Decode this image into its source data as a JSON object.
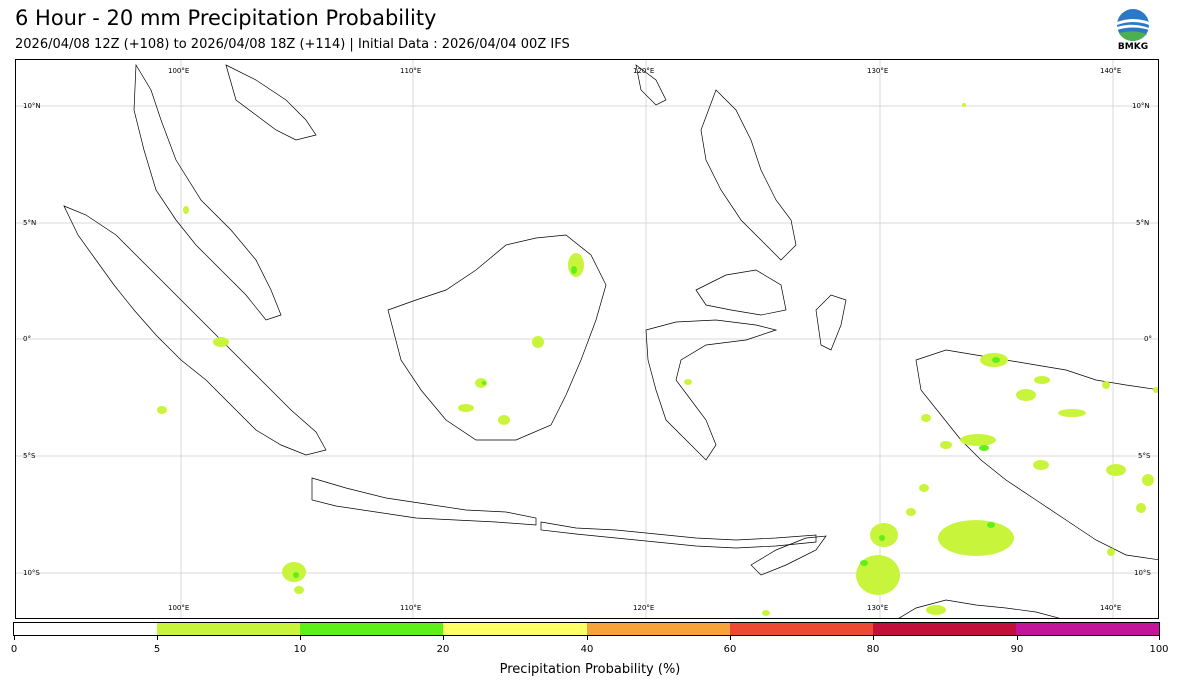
{
  "header": {
    "title": "6 Hour - 20 mm Precipitation Probability",
    "subtitle": "2026/04/08 12Z (+108) to 2026/04/08 18Z (+114) | Initial Data : 2026/04/04 00Z IFS",
    "logo_text": "BMKG"
  },
  "map": {
    "lon_labels": [
      "100°E",
      "110°E",
      "120°E",
      "130°E",
      "140°E"
    ],
    "lat_labels": [
      "10°N",
      "5°N",
      "0°",
      "5°S",
      "10°S"
    ],
    "colors": {
      "coast": "#000000",
      "grid": "#d9d9d9",
      "prob_5_10": "#c8f53c",
      "prob_10_20": "#5ff01a"
    }
  },
  "colorbar": {
    "title": "Precipitation Probability (%)",
    "tick_labels": [
      "0",
      "5",
      "10",
      "20",
      "40",
      "60",
      "80",
      "90",
      "100"
    ],
    "segments": [
      {
        "range": "0-5",
        "color": "#ffffff"
      },
      {
        "range": "5-10",
        "color": "#c8f53c"
      },
      {
        "range": "10-20",
        "color": "#5ff01a"
      },
      {
        "range": "20-40",
        "color": "#ffff66"
      },
      {
        "range": "40-60",
        "color": "#f5a33a"
      },
      {
        "range": "60-80",
        "color": "#ee4a33"
      },
      {
        "range": "80-90",
        "color": "#c2103a"
      },
      {
        "range": "90-100",
        "color": "#c4149a"
      }
    ]
  }
}
